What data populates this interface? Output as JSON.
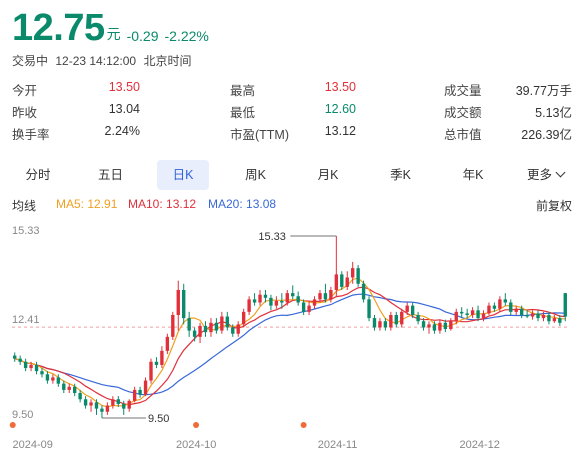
{
  "quote": {
    "price": "12.75",
    "unit": "元",
    "change": "-0.29",
    "change_pct": "-2.22%"
  },
  "status": {
    "state": "交易中",
    "datetime": "12-23 14:12:00",
    "timezone": "北京时间"
  },
  "stats": [
    [
      {
        "label": "今开",
        "value": "13.50",
        "color": "red"
      },
      {
        "label": "最高",
        "value": "13.50",
        "color": "red"
      },
      {
        "label": "成交量",
        "value": "39.77万手",
        "color": "dark"
      }
    ],
    [
      {
        "label": "昨收",
        "value": "13.04",
        "color": "dark"
      },
      {
        "label": "最低",
        "value": "12.60",
        "color": "green"
      },
      {
        "label": "成交额",
        "value": "5.13亿",
        "color": "dark"
      }
    ],
    [
      {
        "label": "换手率",
        "value": "2.24%",
        "color": "dark"
      },
      {
        "label": "市盈(TTM)",
        "value": "13.12",
        "color": "dark"
      },
      {
        "label": "总市值",
        "value": "226.39亿",
        "color": "dark"
      }
    ]
  ],
  "tabs": [
    "分时",
    "五日",
    "日K",
    "周K",
    "月K",
    "季K",
    "年K",
    "更多"
  ],
  "active_tab": "日K",
  "indicators": {
    "label": "均线",
    "ma5": "MA5: 12.91",
    "ma10": "MA10: 13.12",
    "ma20": "MA20: 13.08",
    "adjust": "前复权"
  },
  "colors": {
    "up": "#e0303a",
    "down": "#0a8a6a",
    "ma5": "#f0a020",
    "ma10": "#e0303a",
    "ma20": "#3868d8",
    "accent": "#2f63d8"
  },
  "chart_data": {
    "type": "candlestick",
    "y_ticks": [
      "15.33",
      "12.41",
      "9.50"
    ],
    "ylim": [
      9.5,
      15.33
    ],
    "x_ticks": [
      "2024-09",
      "2024-10",
      "2024-11",
      "2024-12"
    ],
    "reference_price": 12.41,
    "max_label": "15.33",
    "min_label": "9.50",
    "candles": [
      [
        11.5,
        11.4,
        11.6,
        11.3
      ],
      [
        11.4,
        11.3,
        11.5,
        11.2
      ],
      [
        11.3,
        11.1,
        11.4,
        11.0
      ],
      [
        11.1,
        11.2,
        11.3,
        11.0
      ],
      [
        11.2,
        11.0,
        11.3,
        10.9
      ],
      [
        11.0,
        10.9,
        11.1,
        10.8
      ],
      [
        10.9,
        10.7,
        11.0,
        10.6
      ],
      [
        10.7,
        10.8,
        10.9,
        10.6
      ],
      [
        10.8,
        10.6,
        10.9,
        10.5
      ],
      [
        10.6,
        10.4,
        10.7,
        10.3
      ],
      [
        10.4,
        10.5,
        10.6,
        10.3
      ],
      [
        10.5,
        10.3,
        10.6,
        10.2
      ],
      [
        10.3,
        10.1,
        10.4,
        10.0
      ],
      [
        10.1,
        9.9,
        10.2,
        9.8
      ],
      [
        9.9,
        10.0,
        10.1,
        9.7
      ],
      [
        10.0,
        9.8,
        10.1,
        9.6
      ],
      [
        9.8,
        9.7,
        9.9,
        9.5
      ],
      [
        9.7,
        9.9,
        10.0,
        9.6
      ],
      [
        9.9,
        10.1,
        10.2,
        9.8
      ],
      [
        10.1,
        9.95,
        10.2,
        9.85
      ],
      [
        9.95,
        9.8,
        10.05,
        9.6
      ],
      [
        9.8,
        10.05,
        10.1,
        9.7
      ],
      [
        10.05,
        10.4,
        10.5,
        10.0
      ],
      [
        10.4,
        10.25,
        10.5,
        10.15
      ],
      [
        10.25,
        10.7,
        10.8,
        10.2
      ],
      [
        10.7,
        11.3,
        11.4,
        10.6
      ],
      [
        11.3,
        11.2,
        11.45,
        11.1
      ],
      [
        11.2,
        11.65,
        11.8,
        11.1
      ],
      [
        11.65,
        12.1,
        12.2,
        11.55
      ],
      [
        12.1,
        12.8,
        12.9,
        12.0
      ],
      [
        12.8,
        13.6,
        13.9,
        12.3
      ],
      [
        13.6,
        12.7,
        13.8,
        12.5
      ],
      [
        12.7,
        12.3,
        12.9,
        12.1
      ],
      [
        12.3,
        12.1,
        12.4,
        11.95
      ],
      [
        12.1,
        12.45,
        12.55,
        11.9
      ],
      [
        12.45,
        12.25,
        12.6,
        12.1
      ],
      [
        12.25,
        12.55,
        12.7,
        12.1
      ],
      [
        12.55,
        12.3,
        12.7,
        12.2
      ],
      [
        12.3,
        12.75,
        12.9,
        12.2
      ],
      [
        12.75,
        12.4,
        12.9,
        12.3
      ],
      [
        12.4,
        12.2,
        12.5,
        12.1
      ],
      [
        12.2,
        12.5,
        12.6,
        12.1
      ],
      [
        12.5,
        12.9,
        13.0,
        12.4
      ],
      [
        12.9,
        13.3,
        13.4,
        12.8
      ],
      [
        13.3,
        13.2,
        13.5,
        13.1
      ],
      [
        13.2,
        13.45,
        13.6,
        13.1
      ],
      [
        13.45,
        13.35,
        13.6,
        13.2
      ],
      [
        13.35,
        13.1,
        13.45,
        12.95
      ],
      [
        13.1,
        13.25,
        13.4,
        13.0
      ],
      [
        13.25,
        13.2,
        13.5,
        13.0
      ],
      [
        13.2,
        13.5,
        13.6,
        13.1
      ],
      [
        13.5,
        13.4,
        13.75,
        13.3
      ],
      [
        13.4,
        13.2,
        13.55,
        13.1
      ],
      [
        13.2,
        12.9,
        13.3,
        12.8
      ],
      [
        12.9,
        13.1,
        13.25,
        12.8
      ],
      [
        13.1,
        13.3,
        13.4,
        13.0
      ],
      [
        13.3,
        13.5,
        13.6,
        13.2
      ],
      [
        13.5,
        13.3,
        13.8,
        13.2
      ],
      [
        13.3,
        13.6,
        13.7,
        13.2
      ],
      [
        13.6,
        14.1,
        15.33,
        13.4
      ],
      [
        14.1,
        13.7,
        14.2,
        13.6
      ],
      [
        13.7,
        14.0,
        14.2,
        13.6
      ],
      [
        14.0,
        14.3,
        14.5,
        13.8
      ],
      [
        14.3,
        13.8,
        14.4,
        13.7
      ],
      [
        13.8,
        13.3,
        13.9,
        13.2
      ],
      [
        13.3,
        12.7,
        13.4,
        12.6
      ],
      [
        12.7,
        12.4,
        12.8,
        12.3
      ],
      [
        12.4,
        12.6,
        12.7,
        12.3
      ],
      [
        12.6,
        12.4,
        12.7,
        12.3
      ],
      [
        12.4,
        12.8,
        12.9,
        12.3
      ],
      [
        12.8,
        12.5,
        12.9,
        12.4
      ],
      [
        12.5,
        12.9,
        13.0,
        12.4
      ],
      [
        12.9,
        13.1,
        13.2,
        12.8
      ],
      [
        13.1,
        12.8,
        13.2,
        12.7
      ],
      [
        12.8,
        12.6,
        12.9,
        12.5
      ],
      [
        12.6,
        12.4,
        12.7,
        12.3
      ],
      [
        12.4,
        12.5,
        12.6,
        12.2
      ],
      [
        12.5,
        12.3,
        12.6,
        12.2
      ],
      [
        12.3,
        12.55,
        12.65,
        12.2
      ],
      [
        12.55,
        12.35,
        12.65,
        12.25
      ],
      [
        12.35,
        12.6,
        12.7,
        12.3
      ],
      [
        12.6,
        12.9,
        13.0,
        12.5
      ],
      [
        12.9,
        12.85,
        13.05,
        12.7
      ],
      [
        12.85,
        12.8,
        13.0,
        12.7
      ],
      [
        12.8,
        12.95,
        13.05,
        12.7
      ],
      [
        12.95,
        12.7,
        13.1,
        12.6
      ],
      [
        12.7,
        12.85,
        12.95,
        12.6
      ],
      [
        12.85,
        13.1,
        13.2,
        12.8
      ],
      [
        13.1,
        13.0,
        13.2,
        12.9
      ],
      [
        13.0,
        13.3,
        13.4,
        12.9
      ],
      [
        13.3,
        13.2,
        13.5,
        13.1
      ],
      [
        13.2,
        12.9,
        13.3,
        12.8
      ],
      [
        12.9,
        13.0,
        13.1,
        12.8
      ],
      [
        13.0,
        12.8,
        13.1,
        12.7
      ],
      [
        12.8,
        12.75,
        12.95,
        12.7
      ],
      [
        12.75,
        12.85,
        12.95,
        12.65
      ],
      [
        12.85,
        12.7,
        12.95,
        12.6
      ],
      [
        12.7,
        12.8,
        12.9,
        12.6
      ],
      [
        12.8,
        12.6,
        12.9,
        12.5
      ],
      [
        12.6,
        12.7,
        12.8,
        12.55
      ],
      [
        12.7,
        12.55,
        12.8,
        12.45
      ],
      [
        13.5,
        12.75,
        13.5,
        12.6
      ]
    ]
  }
}
